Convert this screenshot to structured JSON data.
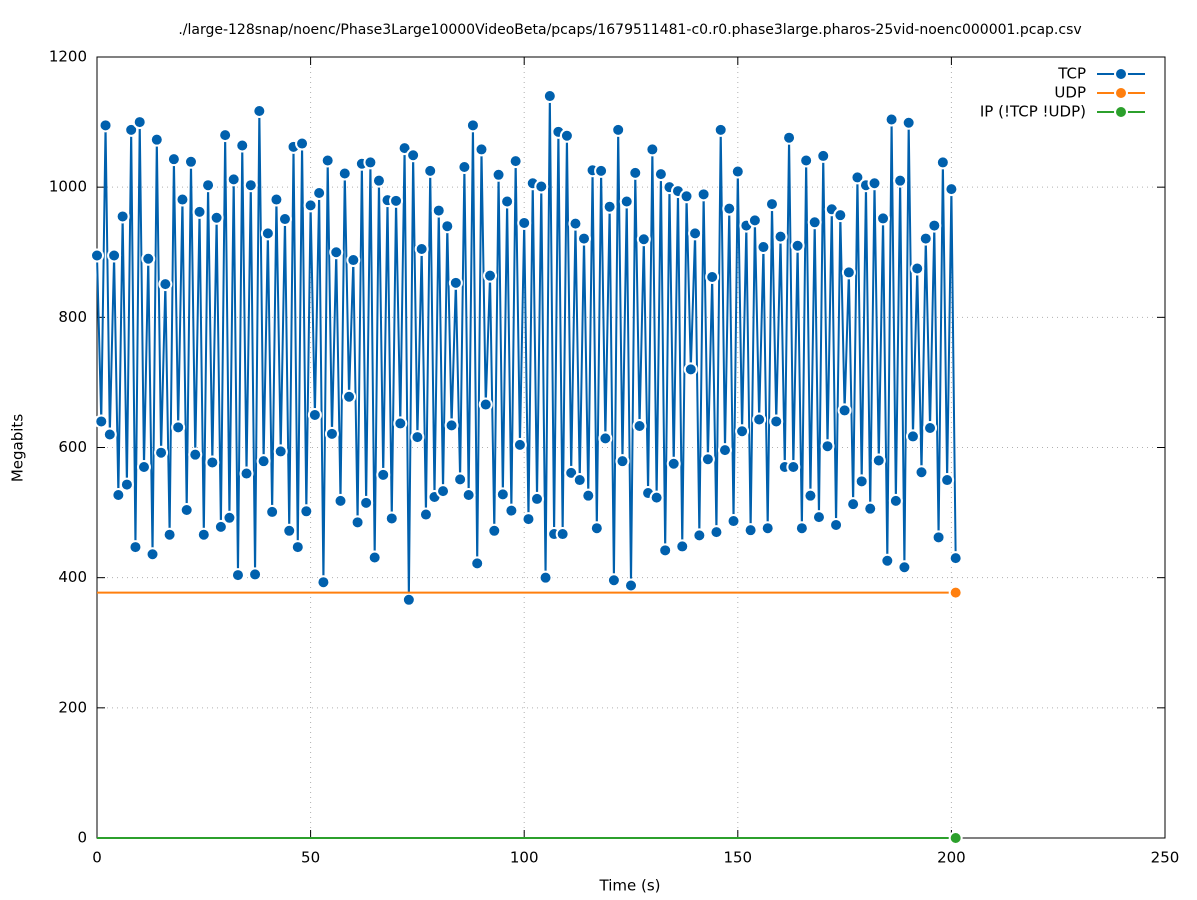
{
  "chart_data": {
    "type": "line",
    "title": "./large-128snap/noenc/Phase3Large10000VideoBeta/pcaps/1679511481-c0.r0.phase3large.pharos-25vid-noenc000001.pcap.csv",
    "x_label": "Time (s)",
    "y_label": "Megabits",
    "xlim": [
      0,
      250
    ],
    "xticks": [
      0,
      50,
      100,
      150,
      200,
      250
    ],
    "ylim": [
      0,
      1200
    ],
    "yticks": [
      0,
      200,
      400,
      600,
      800,
      1000,
      1200
    ],
    "grid": true,
    "legend": "top-right",
    "x": [
      0,
      1,
      2,
      3,
      4,
      5,
      6,
      7,
      8,
      9,
      10,
      11,
      12,
      13,
      14,
      15,
      16,
      17,
      18,
      19,
      20,
      21,
      22,
      23,
      24,
      25,
      26,
      27,
      28,
      29,
      30,
      31,
      32,
      33,
      34,
      35,
      36,
      37,
      38,
      39,
      40,
      41,
      42,
      43,
      44,
      45,
      46,
      47,
      48,
      49,
      50,
      51,
      52,
      53,
      54,
      55,
      56,
      57,
      58,
      59,
      60,
      61,
      62,
      63,
      64,
      65,
      66,
      67,
      68,
      69,
      70,
      71,
      72,
      73,
      74,
      75,
      76,
      77,
      78,
      79,
      80,
      81,
      82,
      83,
      84,
      85,
      86,
      87,
      88,
      89,
      90,
      91,
      92,
      93,
      94,
      95,
      96,
      97,
      98,
      99,
      100,
      101,
      102,
      103,
      104,
      105,
      106,
      107,
      108,
      109,
      110,
      111,
      112,
      113,
      114,
      115,
      116,
      117,
      118,
      119,
      120,
      121,
      122,
      123,
      124,
      125,
      126,
      127,
      128,
      129,
      130,
      131,
      132,
      133,
      134,
      135,
      136,
      137,
      138,
      139,
      140,
      141,
      142,
      143,
      144,
      145,
      146,
      147,
      148,
      149,
      150,
      151,
      152,
      153,
      154,
      155,
      156,
      157,
      158,
      159,
      160,
      161,
      162,
      163,
      164,
      165,
      166,
      167,
      168,
      169,
      170,
      171,
      172,
      173,
      174,
      175,
      176,
      177,
      178,
      179,
      180,
      181,
      182,
      183,
      184,
      185,
      186,
      187,
      188,
      189,
      190,
      191,
      192,
      193,
      194,
      195,
      196,
      197,
      198,
      199,
      200,
      201
    ],
    "series": [
      {
        "name": "TCP",
        "color": "#0060ad",
        "values": [
          895,
          640,
          1095,
          620,
          895,
          527,
          955,
          543,
          1088,
          447,
          1100,
          570,
          890,
          436,
          1073,
          592,
          851,
          466,
          1043,
          631,
          981,
          504,
          1039,
          589,
          962,
          466,
          1003,
          577,
          953,
          478,
          1080,
          492,
          1012,
          404,
          1064,
          560,
          1003,
          405,
          1117,
          579,
          929,
          501,
          981,
          594,
          951,
          472,
          1062,
          447,
          1067,
          502,
          972,
          650,
          991,
          393,
          1041,
          621,
          900,
          518,
          1021,
          678,
          888,
          485,
          1036,
          515,
          1038,
          431,
          1010,
          558,
          980,
          491,
          979,
          637,
          1060,
          366,
          1049,
          616,
          905,
          497,
          1025,
          524,
          964,
          533,
          940,
          634,
          853,
          551,
          1031,
          527,
          1095,
          422,
          1058,
          666,
          864,
          472,
          1019,
          528,
          978,
          503,
          1040,
          604,
          945,
          490,
          1006,
          521,
          1001,
          400,
          1140,
          467,
          1085,
          467,
          1079,
          561,
          944,
          550,
          921,
          526,
          1026,
          476,
          1025,
          614,
          970,
          396,
          1088,
          579,
          978,
          388,
          1022,
          633,
          920,
          530,
          1058,
          523,
          1020,
          442,
          1000,
          575,
          994,
          448,
          986,
          720,
          929,
          465,
          989,
          582,
          862,
          470,
          1088,
          596,
          967,
          487,
          1024,
          625,
          941,
          473,
          949,
          643,
          908,
          476,
          974,
          640,
          924,
          570,
          1076,
          570,
          910,
          476,
          1041,
          526,
          946,
          493,
          1048,
          602,
          966,
          481,
          957,
          657,
          869,
          513,
          1015,
          548,
          1003,
          506,
          1006,
          580,
          952,
          426,
          1104,
          518,
          1010,
          416,
          1099,
          617,
          875,
          562,
          921,
          630,
          941,
          462,
          1038,
          550,
          997,
          430
        ]
      },
      {
        "name": "UDP",
        "color": "#ff7f0e",
        "values": [
          377,
          377,
          377,
          377,
          377,
          377,
          377,
          377,
          377,
          377,
          377,
          377,
          377,
          377,
          377,
          377,
          377,
          377,
          377,
          377,
          377,
          377,
          377,
          377,
          377,
          377,
          377,
          377,
          377,
          377,
          377,
          377,
          377,
          377,
          377,
          377,
          377,
          377,
          377,
          377,
          377,
          377,
          377,
          377,
          377,
          377,
          377,
          377,
          377,
          377,
          377,
          377,
          377,
          377,
          377,
          377,
          377,
          377,
          377,
          377,
          377,
          377,
          377,
          377,
          377,
          377,
          377,
          377,
          377,
          377,
          377,
          377,
          377,
          377,
          377,
          377,
          377,
          377,
          377,
          377,
          377,
          377,
          377,
          377,
          377,
          377,
          377,
          377,
          377,
          377,
          377,
          377,
          377,
          377,
          377,
          377,
          377,
          377,
          377,
          377,
          377,
          377,
          377,
          377,
          377,
          377,
          377,
          377,
          377,
          377,
          377,
          377,
          377,
          377,
          377,
          377,
          377,
          377,
          377,
          377,
          377,
          377,
          377,
          377,
          377,
          377,
          377,
          377,
          377,
          377,
          377,
          377,
          377,
          377,
          377,
          377,
          377,
          377,
          377,
          377,
          377,
          377,
          377,
          377,
          377,
          377,
          377,
          377,
          377,
          377,
          377,
          377,
          377,
          377,
          377,
          377,
          377,
          377,
          377,
          377,
          377,
          377,
          377,
          377,
          377,
          377,
          377,
          377,
          377,
          377,
          377,
          377,
          377,
          377,
          377,
          377,
          377,
          377,
          377,
          377,
          377,
          377,
          377,
          377,
          377,
          377,
          377,
          377,
          377,
          377,
          377,
          377,
          377,
          377,
          377,
          377,
          377,
          377,
          377,
          377,
          377,
          377
        ]
      },
      {
        "name": "IP (!TCP  !UDP)",
        "color": "#2ca02c",
        "values": [
          0,
          0,
          0,
          0,
          0,
          0,
          0,
          0,
          0,
          0,
          0,
          0,
          0,
          0,
          0,
          0,
          0,
          0,
          0,
          0,
          0,
          0,
          0,
          0,
          0,
          0,
          0,
          0,
          0,
          0,
          0,
          0,
          0,
          0,
          0,
          0,
          0,
          0,
          0,
          0,
          0,
          0,
          0,
          0,
          0,
          0,
          0,
          0,
          0,
          0,
          0,
          0,
          0,
          0,
          0,
          0,
          0,
          0,
          0,
          0,
          0,
          0,
          0,
          0,
          0,
          0,
          0,
          0,
          0,
          0,
          0,
          0,
          0,
          0,
          0,
          0,
          0,
          0,
          0,
          0,
          0,
          0,
          0,
          0,
          0,
          0,
          0,
          0,
          0,
          0,
          0,
          0,
          0,
          0,
          0,
          0,
          0,
          0,
          0,
          0,
          0,
          0,
          0,
          0,
          0,
          0,
          0,
          0,
          0,
          0,
          0,
          0,
          0,
          0,
          0,
          0,
          0,
          0,
          0,
          0,
          0,
          0,
          0,
          0,
          0,
          0,
          0,
          0,
          0,
          0,
          0,
          0,
          0,
          0,
          0,
          0,
          0,
          0,
          0,
          0,
          0,
          0,
          0,
          0,
          0,
          0,
          0,
          0,
          0,
          0,
          0,
          0,
          0,
          0,
          0,
          0,
          0,
          0,
          0,
          0,
          0,
          0,
          0,
          0,
          0,
          0,
          0,
          0,
          0,
          0,
          0,
          0,
          0,
          0,
          0,
          0,
          0,
          0,
          0,
          0,
          0,
          0,
          0,
          0,
          0,
          0,
          0,
          0,
          0,
          0,
          0,
          0,
          0,
          0,
          0,
          0,
          0,
          0,
          0,
          0,
          0,
          0
        ]
      }
    ]
  }
}
